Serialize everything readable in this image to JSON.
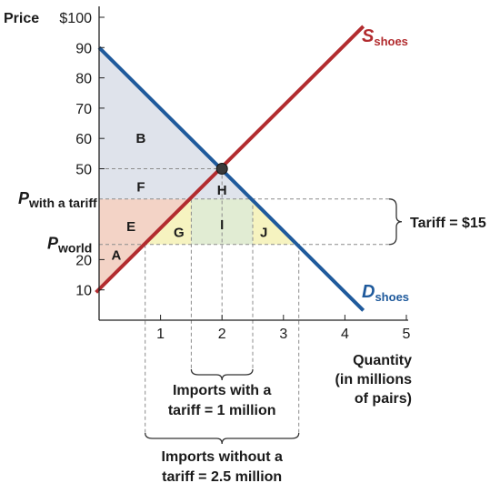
{
  "chart_data": {
    "type": "line",
    "xlabel": [
      "Quantity",
      "(in millions",
      "of pairs)"
    ],
    "ylabel": "Price",
    "x_ticks": [
      1,
      2,
      3,
      4,
      5
    ],
    "y_ticks": [
      {
        "value": 10,
        "label": "10"
      },
      {
        "value": 20,
        "label": "20"
      },
      {
        "value": 30,
        "label": "30"
      },
      {
        "value": 40,
        "label": "40"
      },
      {
        "value": 50,
        "label": "50"
      },
      {
        "value": 60,
        "label": "60"
      },
      {
        "value": 70,
        "label": "70"
      },
      {
        "value": 80,
        "label": "80"
      },
      {
        "value": 90,
        "label": "90"
      },
      {
        "value": 100,
        "label": "$100"
      }
    ],
    "xlim": [
      0,
      5
    ],
    "ylim": [
      0,
      103
    ],
    "grid": false,
    "series": [
      {
        "label_main": "S",
        "label_sub": "shoes",
        "color": "#b22c2f",
        "points": [
          [
            -0.05,
            9.2
          ],
          [
            4.3,
            97
          ]
        ]
      },
      {
        "label_main": "D",
        "label_sub": "shoes",
        "color": "#1f5a9c",
        "points": [
          [
            0,
            90
          ],
          [
            4.3,
            3.2
          ]
        ]
      }
    ],
    "equilibrium": {
      "x": 2,
      "y": 50
    },
    "price_levels": [
      {
        "name": "world",
        "main": "P",
        "sub": "world",
        "value": 25
      },
      {
        "name": "with_tariff",
        "main": "P",
        "sub": "with a tariff",
        "value": 40
      }
    ],
    "quantity_marks": {
      "qs_world": 0.75,
      "qs_tariff": 1.5,
      "qd_tariff": 2.5,
      "qd_world": 3.25
    },
    "regions": [
      {
        "label": "A",
        "color": "#f3d3c6",
        "polygon": [
          [
            0,
            10
          ],
          [
            0.75,
            25
          ],
          [
            0,
            25
          ]
        ],
        "label_at": [
          0.28,
          21.5
        ]
      },
      {
        "label": "B",
        "color": "#dfe3eb",
        "polygon": [
          [
            0,
            90
          ],
          [
            2,
            50
          ],
          [
            0,
            50
          ]
        ],
        "label_at": [
          0.68,
          60
        ]
      },
      {
        "label": "E",
        "color": "#f3d3c6",
        "polygon": [
          [
            0,
            25
          ],
          [
            0.75,
            25
          ],
          [
            1.5,
            40
          ],
          [
            0,
            40
          ]
        ],
        "label_at": [
          0.52,
          31
        ]
      },
      {
        "label": "F",
        "color": "#dfe3eb",
        "polygon": [
          [
            0,
            50
          ],
          [
            2,
            50
          ],
          [
            2.5,
            40
          ],
          [
            0,
            40
          ]
        ],
        "label_at": [
          0.68,
          44
        ]
      },
      {
        "label": "G",
        "color": "#f6f3c0",
        "polygon": [
          [
            0.75,
            25
          ],
          [
            1.5,
            25
          ],
          [
            1.5,
            40
          ]
        ],
        "label_at": [
          1.3,
          29
        ]
      },
      {
        "label": "H",
        "color": "#dfe3eb",
        "polygon": [
          [
            1.5,
            40
          ],
          [
            2,
            50
          ],
          [
            2.5,
            40
          ]
        ],
        "label_at": [
          2,
          43
        ]
      },
      {
        "label": "I",
        "color": "#e1ecd3",
        "polygon": [
          [
            1.5,
            25
          ],
          [
            2.5,
            25
          ],
          [
            2.5,
            40
          ],
          [
            1.5,
            40
          ]
        ],
        "label_at": [
          2,
          31.5
        ]
      },
      {
        "label": "J",
        "color": "#f6f3c0",
        "polygon": [
          [
            2.5,
            25
          ],
          [
            3.25,
            25
          ],
          [
            2.5,
            40
          ]
        ],
        "label_at": [
          2.68,
          29
        ]
      }
    ],
    "annotations": {
      "tariff": "Tariff = $15",
      "imports_with_tariff": [
        "Imports with a",
        "tariff = 1 million"
      ],
      "imports_without_tariff": [
        "Imports without a",
        "tariff = 2.5 million"
      ]
    }
  }
}
